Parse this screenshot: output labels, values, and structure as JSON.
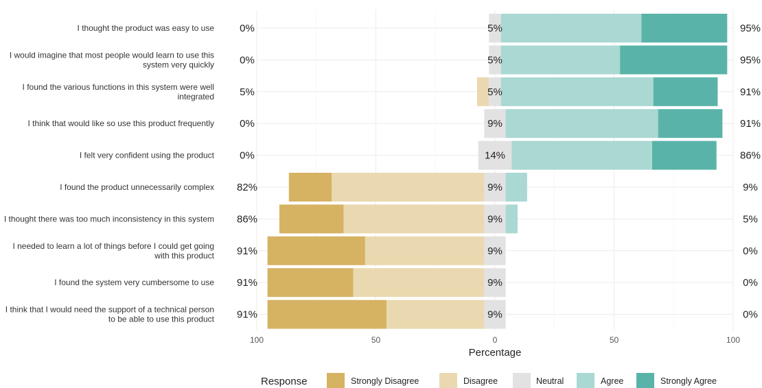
{
  "chart_data": {
    "type": "bar",
    "orientation": "horizontal",
    "stacking": "diverging",
    "xlabel": "Percentage",
    "xlim": [
      -100,
      100
    ],
    "xticks": [
      -100,
      -50,
      0,
      50,
      100
    ],
    "xtick_labels": [
      "100",
      "50",
      "0",
      "50",
      "100"
    ],
    "grid": true,
    "legend_title": "Response",
    "legend_position": "bottom",
    "legend": [
      "Strongly Disagree",
      "Disagree",
      "Neutral",
      "Agree",
      "Strongly Agree"
    ],
    "colors": {
      "Strongly Disagree": "#d6b263",
      "Disagree": "#ead9b0",
      "Neutral": "#e2e2e2",
      "Agree": "#aad8d3",
      "Strongly Agree": "#5ab3a9"
    },
    "categories": [
      "I thought the product was easy to use",
      "I would imagine that most people would learn to use this system very quickly",
      "I found the various functions in this system were well integrated",
      "I think that would like so use this product frequently",
      "I felt very confident using the product",
      "I found the product unnecessarily complex",
      "I thought there was too much inconsistency in this system",
      "I needed to learn a lot of things before I could get going with this product",
      "I found the system very cumbersome to use",
      "I think that I would need the support of a technical person to be able to use this product"
    ],
    "series": [
      {
        "name": "Strongly Disagree",
        "values": [
          0,
          0,
          0,
          0,
          0,
          18,
          27,
          41,
          36,
          50
        ]
      },
      {
        "name": "Disagree",
        "values": [
          0,
          0,
          5,
          0,
          0,
          64,
          59,
          50,
          55,
          41
        ]
      },
      {
        "name": "Neutral",
        "values": [
          5,
          5,
          5,
          9,
          14,
          9,
          9,
          9,
          9,
          9
        ]
      },
      {
        "name": "Agree",
        "values": [
          59,
          50,
          64,
          64,
          59,
          9,
          5,
          0,
          0,
          0
        ]
      },
      {
        "name": "Strongly Agree",
        "values": [
          36,
          45,
          27,
          27,
          27,
          0,
          0,
          0,
          0,
          0
        ]
      }
    ],
    "left_labels": [
      "0%",
      "0%",
      "5%",
      "0%",
      "0%",
      "82%",
      "86%",
      "91%",
      "91%",
      "91%"
    ],
    "center_labels": [
      "5%",
      "5%",
      "5%",
      "9%",
      "14%",
      "9%",
      "9%",
      "9%",
      "9%",
      "9%"
    ],
    "right_labels": [
      "95%",
      "95%",
      "91%",
      "91%",
      "86%",
      "9%",
      "5%",
      "0%",
      "0%",
      "0%"
    ]
  }
}
